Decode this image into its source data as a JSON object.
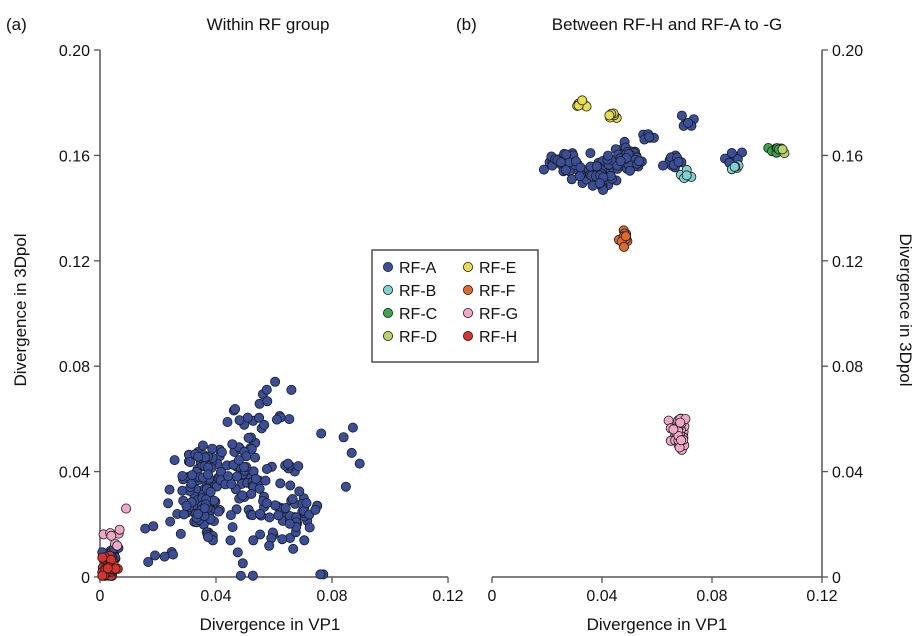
{
  "colors": {
    "RF-A": "#3a4f9a",
    "RF-B": "#7fd1cf",
    "RF-C": "#3aa64a",
    "RF-D": "#b9d36a",
    "RF-E": "#e8dd4a",
    "RF-F": "#e06a2e",
    "RF-G": "#f0a8c8",
    "RF-H": "#d8322e"
  },
  "chart_data": [
    {
      "panel": "(a)",
      "type": "scatter",
      "title": "Within RF group",
      "xlabel": "Divergence in VP1",
      "ylabel": "Divergence in 3Dpol",
      "xlim": [
        0,
        0.12
      ],
      "ylim": [
        0,
        0.2
      ],
      "xticks": [
        "0",
        "0.04",
        "0.08",
        "0.12"
      ],
      "yticks": [
        "0",
        "0.04",
        "0.08",
        "0.12",
        "0.16",
        "0.20"
      ],
      "y_axis_side": "left",
      "grid": false,
      "series": [
        {
          "name": "RF-A",
          "clusters": [
            {
              "cx": 0.036,
              "cy": 0.033,
              "sx": 0.004,
              "sy": 0.01,
              "n": 95
            },
            {
              "cx": 0.05,
              "cy": 0.04,
              "sx": 0.004,
              "sy": 0.012,
              "n": 45
            },
            {
              "cx": 0.062,
              "cy": 0.028,
              "sx": 0.006,
              "sy": 0.01,
              "n": 50
            },
            {
              "cx": 0.07,
              "cy": 0.022,
              "sx": 0.003,
              "sy": 0.004,
              "n": 20
            },
            {
              "cx": 0.055,
              "cy": 0.062,
              "sx": 0.006,
              "sy": 0.005,
              "n": 18
            },
            {
              "cx": 0.028,
              "cy": 0.025,
              "sx": 0.005,
              "sy": 0.008,
              "n": 16
            },
            {
              "cx": 0.046,
              "cy": 0.008,
              "sx": 0.004,
              "sy": 0.006,
              "n": 6
            },
            {
              "cx": 0.08,
              "cy": 0.045,
              "sx": 0.004,
              "sy": 0.01,
              "n": 5
            },
            {
              "cx": 0.018,
              "cy": 0.014,
              "sx": 0.004,
              "sy": 0.006,
              "n": 6
            },
            {
              "cx": 0.004,
              "cy": 0.008,
              "sx": 0.0015,
              "sy": 0.003,
              "n": 25
            }
          ],
          "points": [
            [
              0.077,
              0.001
            ],
            [
              0.076,
              0.001
            ],
            [
              0.084,
              0.053
            ],
            [
              0.066,
              0.071
            ]
          ]
        },
        {
          "name": "RF-G",
          "clusters": [
            {
              "cx": 0.005,
              "cy": 0.016,
              "sx": 0.0015,
              "sy": 0.004,
              "n": 7
            }
          ],
          "points": [
            [
              0.009,
              0.026
            ]
          ]
        },
        {
          "name": "RF-H",
          "clusters": [
            {
              "cx": 0.003,
              "cy": 0.003,
              "sx": 0.0015,
              "sy": 0.0025,
              "n": 45
            }
          ]
        }
      ]
    },
    {
      "panel": "(b)",
      "type": "scatter",
      "title": "Between RF-H and RF-A to -G",
      "xlabel": "Divergence in VP1",
      "ylabel": "Divergence in 3Dpol",
      "xlim": [
        0,
        0.12
      ],
      "ylim": [
        0,
        0.2
      ],
      "xticks": [
        "0",
        "0.04",
        "0.08",
        "0.12"
      ],
      "yticks": [
        "0",
        "0.04",
        "0.08",
        "0.12",
        "0.16",
        "0.20"
      ],
      "y_axis_side": "right",
      "grid": false,
      "series": [
        {
          "name": "RF-A",
          "clusters": [
            {
              "cx": 0.027,
              "cy": 0.157,
              "sx": 0.004,
              "sy": 0.002,
              "n": 45
            },
            {
              "cx": 0.038,
              "cy": 0.152,
              "sx": 0.004,
              "sy": 0.0025,
              "n": 35
            },
            {
              "cx": 0.049,
              "cy": 0.159,
              "sx": 0.003,
              "sy": 0.002,
              "n": 60
            },
            {
              "cx": 0.058,
              "cy": 0.167,
              "sx": 0.002,
              "sy": 0.001,
              "n": 6
            },
            {
              "cx": 0.066,
              "cy": 0.157,
              "sx": 0.002,
              "sy": 0.0015,
              "n": 12
            },
            {
              "cx": 0.071,
              "cy": 0.172,
              "sx": 0.0015,
              "sy": 0.001,
              "n": 6
            },
            {
              "cx": 0.087,
              "cy": 0.159,
              "sx": 0.002,
              "sy": 0.001,
              "n": 10
            }
          ]
        },
        {
          "name": "RF-B",
          "clusters": [
            {
              "cx": 0.071,
              "cy": 0.153,
              "sx": 0.002,
              "sy": 0.0008,
              "n": 6
            },
            {
              "cx": 0.089,
              "cy": 0.155,
              "sx": 0.0015,
              "sy": 0.0008,
              "n": 5
            }
          ]
        },
        {
          "name": "RF-C",
          "clusters": [
            {
              "cx": 0.103,
              "cy": 0.162,
              "sx": 0.002,
              "sy": 0.0008,
              "n": 9
            }
          ]
        },
        {
          "name": "RF-D",
          "clusters": [
            {
              "cx": 0.106,
              "cy": 0.161,
              "sx": 0.0008,
              "sy": 0.0008,
              "n": 2
            }
          ]
        },
        {
          "name": "RF-E",
          "clusters": [
            {
              "cx": 0.033,
              "cy": 0.179,
              "sx": 0.0015,
              "sy": 0.0008,
              "n": 6
            },
            {
              "cx": 0.045,
              "cy": 0.175,
              "sx": 0.0015,
              "sy": 0.001,
              "n": 6
            }
          ]
        },
        {
          "name": "RF-F",
          "clusters": [
            {
              "cx": 0.048,
              "cy": 0.129,
              "sx": 0.0008,
              "sy": 0.0015,
              "n": 14
            }
          ]
        },
        {
          "name": "RF-G",
          "clusters": [
            {
              "cx": 0.068,
              "cy": 0.054,
              "sx": 0.0018,
              "sy": 0.003,
              "n": 40
            }
          ]
        }
      ]
    }
  ],
  "legend": {
    "placement": "center",
    "items": [
      {
        "label": "RF-A",
        "color": "#3a4f9a"
      },
      {
        "label": "RF-E",
        "color": "#e8dd4a"
      },
      {
        "label": "RF-B",
        "color": "#7fd1cf"
      },
      {
        "label": "RF-F",
        "color": "#e06a2e"
      },
      {
        "label": "RF-C",
        "color": "#3aa64a"
      },
      {
        "label": "RF-G",
        "color": "#f0a8c8"
      },
      {
        "label": "RF-D",
        "color": "#b9d36a"
      },
      {
        "label": "RF-H",
        "color": "#d8322e"
      }
    ]
  }
}
